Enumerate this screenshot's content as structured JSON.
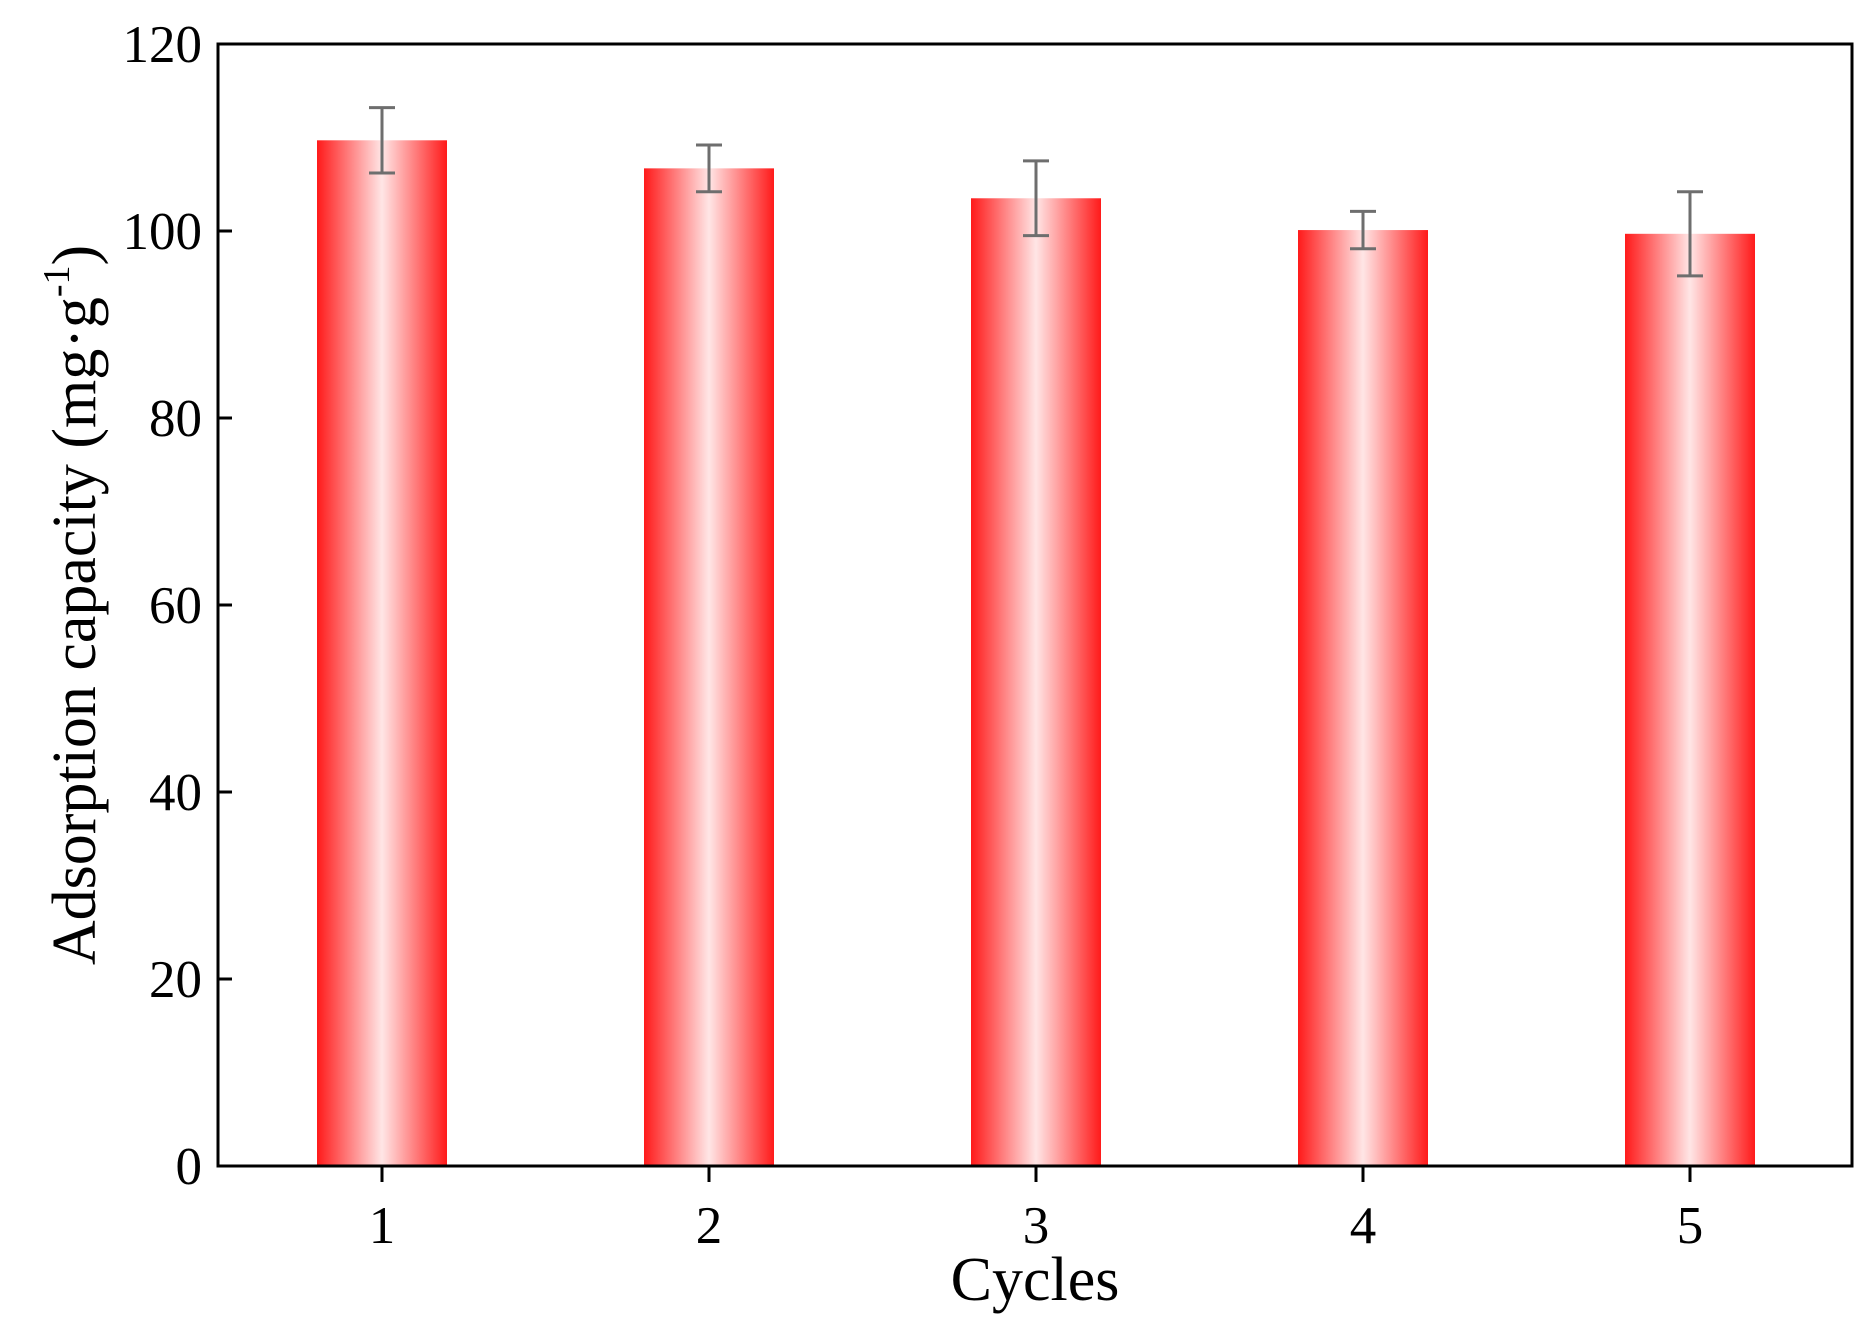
{
  "chart_data": {
    "type": "bar",
    "categories": [
      "1",
      "2",
      "3",
      "4",
      "5"
    ],
    "series": [
      {
        "values": [
          109.7,
          106.7,
          103.5,
          100.1,
          99.7
        ],
        "error": [
          3.5,
          2.5,
          4.0,
          2.0,
          4.5
        ]
      }
    ],
    "xlabel": "Cycles",
    "ylabel": {
      "main": "Adsorption capacity (mg·g",
      "superscript": "-1",
      "close": ")"
    },
    "ylim": [
      0,
      120
    ],
    "yticks": [
      0,
      20,
      40,
      60,
      80,
      100,
      120
    ],
    "grid": false,
    "legend": "none",
    "colors": {
      "bar_edge": "#ff1a1a",
      "bar_center": "#ffe6e6",
      "error_bar": "#6e6e6e",
      "axis": "#000000"
    }
  }
}
